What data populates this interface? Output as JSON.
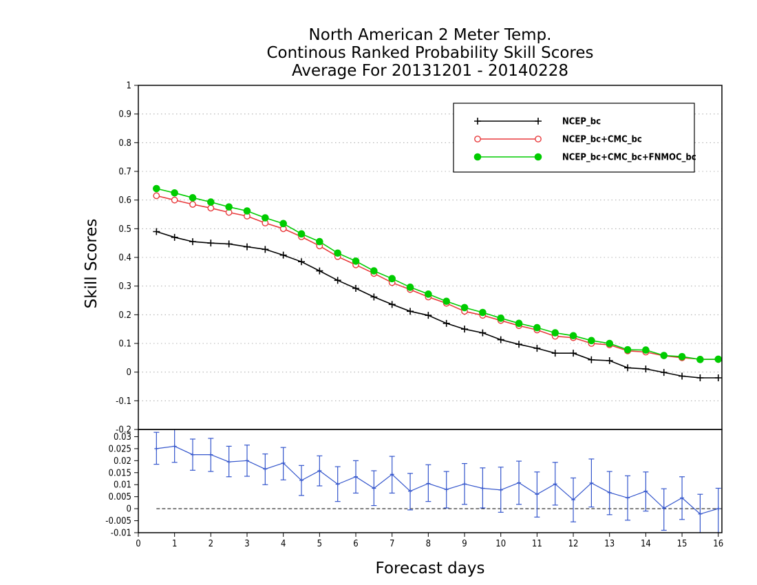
{
  "chart_data": [
    {
      "type": "line",
      "title": [
        "North American 2 Meter Temp.",
        "Continous Ranked Probability Skill Scores",
        "Average For 20131201 - 20140228"
      ],
      "xlabel": "Forecast days",
      "ylabel": "Skill Scores",
      "xlim": [
        0,
        16.1
      ],
      "ylim": [
        -0.2,
        1
      ],
      "yticks": [
        -0.2,
        -0.1,
        0,
        0.1,
        0.2,
        0.3,
        0.4,
        0.5,
        0.6,
        0.7,
        0.8,
        0.9,
        1
      ],
      "ytick_labels": [
        "-0.2",
        "-0.1",
        "0",
        "0.1",
        "0.2",
        "0.3",
        "0.4",
        "0.5",
        "0.6",
        "0.7",
        "0.8",
        "0.9",
        "1"
      ],
      "grid": true,
      "legend_position": "top-right",
      "x": [
        0.5,
        1,
        1.5,
        2,
        2.5,
        3,
        3.5,
        4,
        4.5,
        5,
        5.5,
        6,
        6.5,
        7,
        7.5,
        8,
        8.5,
        9,
        9.5,
        10,
        10.5,
        11,
        11.5,
        12,
        12.5,
        13,
        13.5,
        14,
        14.5,
        15,
        15.5,
        16
      ],
      "series": [
        {
          "name": "NCEP_bc",
          "color": "#000000",
          "marker": "plus",
          "values": [
            0.49,
            0.47,
            0.455,
            0.45,
            0.447,
            0.437,
            0.428,
            0.408,
            0.385,
            0.353,
            0.32,
            0.292,
            0.262,
            0.236,
            0.212,
            0.198,
            0.17,
            0.15,
            0.137,
            0.113,
            0.097,
            0.083,
            0.066,
            0.066,
            0.043,
            0.04,
            0.015,
            0.011,
            -0.001,
            -0.014,
            -0.02,
            -0.02
          ]
        },
        {
          "name": "NCEP_bc+CMC_bc",
          "color": "#e8393b",
          "marker": "open-circle",
          "values": [
            0.615,
            0.6,
            0.585,
            0.572,
            0.557,
            0.544,
            0.52,
            0.5,
            0.472,
            0.44,
            0.403,
            0.374,
            0.344,
            0.312,
            0.288,
            0.262,
            0.24,
            0.212,
            0.198,
            0.18,
            0.162,
            0.147,
            0.125,
            0.12,
            0.1,
            0.095,
            0.074,
            0.07,
            0.057,
            0.05,
            0.045,
            0.044
          ]
        },
        {
          "name": "NCEP_bc+CMC_bc+FNMOC_bc",
          "color": "#00cc00",
          "marker": "filled-circle",
          "values": [
            0.64,
            0.625,
            0.608,
            0.593,
            0.576,
            0.562,
            0.538,
            0.518,
            0.482,
            0.455,
            0.415,
            0.387,
            0.353,
            0.326,
            0.296,
            0.272,
            0.247,
            0.225,
            0.208,
            0.188,
            0.17,
            0.155,
            0.137,
            0.127,
            0.11,
            0.1,
            0.078,
            0.077,
            0.058,
            0.054,
            0.044,
            0.045
          ]
        }
      ]
    },
    {
      "type": "line",
      "xlabel": "Forecast days",
      "xlim": [
        0,
        16.1
      ],
      "xticks": [
        0,
        1,
        2,
        3,
        4,
        5,
        6,
        7,
        8,
        9,
        10,
        11,
        12,
        13,
        14,
        15,
        16
      ],
      "xtick_labels": [
        "0",
        "1",
        "2",
        "3",
        "4",
        "5",
        "6",
        "7",
        "8",
        "9",
        "10",
        "11",
        "12",
        "13",
        "14",
        "15",
        "16"
      ],
      "ylim": [
        -0.01,
        0.033
      ],
      "yticks": [
        -0.01,
        -0.005,
        0,
        0.005,
        0.01,
        0.015,
        0.02,
        0.025,
        0.03
      ],
      "ytick_labels": [
        "-0.01",
        "-0.005",
        "0",
        "0.005",
        "0.01",
        "0.015",
        "0.02",
        "0.025",
        "0.03"
      ],
      "grid": false,
      "zero_line": "dashed",
      "color": "#3355cc",
      "x": [
        0.5,
        1,
        1.5,
        2,
        2.5,
        3,
        3.5,
        4,
        4.5,
        5,
        5.5,
        6,
        6.5,
        7,
        7.5,
        8,
        8.5,
        9,
        9.5,
        10,
        10.5,
        11,
        11.5,
        12,
        12.5,
        13,
        13.5,
        14,
        14.5,
        15,
        15.5,
        16
      ],
      "values": [
        0.025,
        0.026,
        0.0225,
        0.0225,
        0.0195,
        0.02,
        0.0165,
        0.019,
        0.0118,
        0.0158,
        0.0102,
        0.0133,
        0.0085,
        0.0143,
        0.0073,
        0.0105,
        0.008,
        0.0103,
        0.0085,
        0.0078,
        0.0108,
        0.006,
        0.0103,
        0.0037,
        0.0107,
        0.0067,
        0.0045,
        0.0073,
        0.0002,
        0.0045,
        -0.0022,
        0
      ],
      "error_low": [
        0.0185,
        0.0193,
        0.016,
        0.0155,
        0.0133,
        0.0135,
        0.01,
        0.012,
        0.0055,
        0.0095,
        0.003,
        0.0065,
        0.0013,
        0.0065,
        -0.0005,
        0.003,
        0.0003,
        0.0018,
        0.0003,
        -0.0015,
        0.0018,
        -0.0035,
        0.0015,
        -0.0055,
        0.0007,
        -0.0025,
        -0.0048,
        -0.001,
        -0.009,
        -0.0045,
        -0.0105,
        -0.01
      ],
      "error_high": [
        0.0318,
        0.033,
        0.029,
        0.0293,
        0.026,
        0.0265,
        0.0228,
        0.0255,
        0.018,
        0.022,
        0.0175,
        0.02,
        0.0158,
        0.0218,
        0.0147,
        0.0183,
        0.0155,
        0.0188,
        0.017,
        0.0173,
        0.0198,
        0.0153,
        0.0193,
        0.0128,
        0.0207,
        0.0155,
        0.0137,
        0.0153,
        0.0083,
        0.0133,
        0.006,
        0.0085
      ]
    }
  ]
}
